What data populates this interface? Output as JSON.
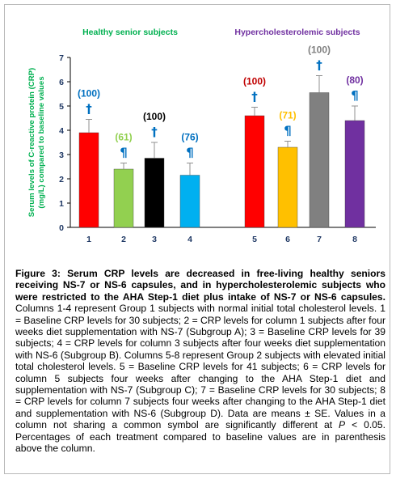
{
  "chart_data": {
    "type": "bar",
    "categories": [
      "1",
      "2",
      "3",
      "4",
      "5",
      "6",
      "7",
      "8"
    ],
    "values": [
      3.9,
      2.4,
      2.85,
      2.15,
      4.6,
      3.3,
      5.55,
      4.4
    ],
    "errors": [
      0.55,
      0.25,
      0.65,
      0.5,
      0.35,
      0.25,
      0.7,
      0.6
    ],
    "percent_labels": [
      "(100)",
      "(61)",
      "(100)",
      "(76)",
      "(100)",
      "(71)",
      "(100)",
      "(80)"
    ],
    "symbols": [
      "†",
      "¶",
      "†",
      "¶",
      "†",
      "¶",
      "†",
      "¶"
    ],
    "bar_colors": [
      "#ff0000",
      "#92d050",
      "#000000",
      "#00b0f0",
      "#ff0000",
      "#ffc000",
      "#808080",
      "#7030a0"
    ],
    "label_colors": [
      "#0070c0",
      "#92d050",
      "#000000",
      "#0070c0",
      "#c00000",
      "#ffc000",
      "#808080",
      "#7030a0"
    ],
    "group_labels": [
      {
        "text": "Healthy senior subjects",
        "color": "#00b050"
      },
      {
        "text": "Hypercholesterolemic subjects",
        "color": "#7030a0"
      }
    ],
    "ylabel_lines": [
      "Serum levels of C-reactive protein (CRP)",
      "(mg/L) compared to baseline values"
    ],
    "ylabel_color": "#00b050",
    "yticks": [
      "0",
      "1",
      "2",
      "3",
      "4",
      "5",
      "6",
      "7"
    ],
    "ylim": [
      0,
      7
    ],
    "symbol_color": "#0070c0",
    "tick_label_color": "#1f3864"
  },
  "caption": {
    "lead": "Figure 3: Serum CRP levels are decreased in free-living healthy seniors receiving NS-7 or NS-6 capsules, and in hypercholesterolemic subjects who were restricted to the AHA Step-1 diet plus intake of NS-7 or NS-6 capsules.",
    "body_before_p": " Columns 1-4 represent Group 1 subjects with normal initial total cholesterol levels. 1 = Baseline CRP levels for 30 subjects; 2 = CRP levels for column 1 subjects after four weeks diet supplementation with NS-7 (Subgroup A); 3 = Baseline CRP levels for 39 subjects; 4 = CRP levels for column 3 subjects after four weeks diet supplementation with NS-6 (Subgroup B). Columns 5-8 represent Group 2 subjects with elevated initial total cholesterol levels. 5 = Baseline CRP levels for 41 subjects; 6 = CRP levels for column 5 subjects four weeks after changing to the AHA Step-1 diet and supplementation with NS-7 (Subgroup C); 7 = Baseline CRP levels for 30 subjects; 8 = CRP levels for column 7 subjects four weeks after changing to the AHA Step-1 diet and supplementation with NS-6 (Subgroup D). Data are means ± SE. Values in a column not sharing a common symbol are significantly different at ",
    "p_symbol": "P",
    "body_after_p": " < 0.05. Percentages of each treatment compared to baseline values are in parenthesis above the column."
  }
}
